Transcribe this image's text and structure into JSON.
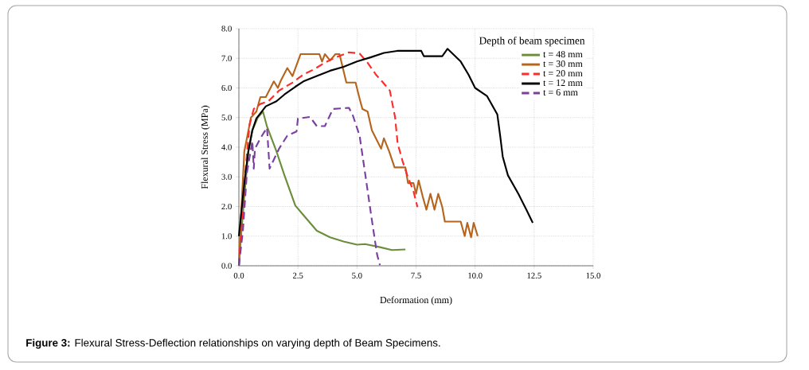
{
  "chart_data": {
    "type": "line",
    "xlabel": "Deformation (mm)",
    "ylabel": "Flexural Stress (MPa)",
    "legend_title": "Depth of beam specimen",
    "annotations": [
      "**Figure 3:** Flexural Stress-Deflection relationships on varying depth of Beam Specimens."
    ],
    "xlim": [
      0,
      15
    ],
    "ylim": [
      0,
      8
    ],
    "xticks": [
      {
        "value": 0,
        "label": "0.0"
      },
      {
        "value": 2.5,
        "label": "2.5"
      },
      {
        "value": 5,
        "label": "5.0"
      },
      {
        "value": 7.5,
        "label": "7.5"
      },
      {
        "value": 10,
        "label": "10.0"
      },
      {
        "value": 12.5,
        "label": "12.5"
      },
      {
        "value": 15,
        "label": "15.0"
      }
    ],
    "yticks": [
      {
        "value": 0,
        "label": "0.0"
      },
      {
        "value": 1,
        "label": "1.0"
      },
      {
        "value": 2,
        "label": "2.0"
      },
      {
        "value": 3,
        "label": "3.0"
      },
      {
        "value": 4,
        "label": "4.0"
      },
      {
        "value": 5,
        "label": "5.0"
      },
      {
        "value": 6,
        "label": "6.0"
      },
      {
        "value": 7,
        "label": "7.0"
      },
      {
        "value": 8,
        "label": "8.0"
      }
    ],
    "grid": true,
    "legend": "top right",
    "marker": "none",
    "series": [
      {
        "name": "t = 48 mm",
        "color": "#6b8e3a",
        "line_style": "solid",
        "x": [
          0,
          0.11,
          0.23,
          0.4,
          0.57,
          0.8,
          1.02,
          1.19,
          1.59,
          1.93,
          2.39,
          2.73,
          3.3,
          3.86,
          4.43,
          5.0,
          5.34,
          5.9,
          6.48,
          7.05
        ],
        "values": [
          0,
          1.18,
          2.34,
          3.86,
          4.57,
          5.0,
          5.2,
          4.7,
          3.86,
          3.05,
          2.03,
          1.71,
          1.18,
          0.96,
          0.82,
          0.71,
          0.73,
          0.64,
          0.53,
          0.55
        ]
      },
      {
        "name": "t = 30 mm",
        "color": "#b5651d",
        "line_style": "solid",
        "x": [
          0,
          0.06,
          0.23,
          0.34,
          0.51,
          0.74,
          0.91,
          1.14,
          1.48,
          1.65,
          1.76,
          2.05,
          2.27,
          2.61,
          3.41,
          3.52,
          3.64,
          3.86,
          4.09,
          4.26,
          4.55,
          4.94,
          5.11,
          5.23,
          5.45,
          5.63,
          5.8,
          6.02,
          6.14,
          6.36,
          6.59,
          7.05,
          7.16,
          7.39,
          7.5,
          7.61,
          7.78,
          7.94,
          8.11,
          8.28,
          8.44,
          8.61,
          8.72,
          9.39,
          9.56,
          9.67,
          9.83,
          9.94,
          10.11
        ],
        "values": [
          0,
          1.18,
          3.86,
          4.3,
          5.0,
          5.2,
          5.69,
          5.69,
          6.22,
          6.0,
          6.22,
          6.67,
          6.4,
          7.14,
          7.14,
          6.89,
          7.14,
          6.93,
          7.14,
          7.14,
          6.18,
          6.18,
          5.64,
          5.29,
          5.2,
          4.57,
          4.3,
          3.95,
          4.3,
          3.86,
          3.32,
          3.32,
          2.79,
          2.79,
          2.43,
          2.88,
          2.34,
          1.89,
          2.43,
          1.89,
          2.43,
          1.98,
          1.49,
          1.49,
          1.0,
          1.45,
          0.96,
          1.45,
          1.0
        ]
      },
      {
        "name": "t = 20 mm",
        "color": "#ff2a2a",
        "line_style": "dashed",
        "x": [
          0,
          0.11,
          0.28,
          0.45,
          0.63,
          0.91,
          1.25,
          1.7,
          2.27,
          2.73,
          3.18,
          3.64,
          4.09,
          4.66,
          5.11,
          5.45,
          5.8,
          6.06,
          6.39,
          6.61,
          6.72,
          6.94,
          7.17,
          7.39,
          7.56
        ],
        "values": [
          0,
          1.18,
          3.23,
          4.75,
          5.29,
          5.46,
          5.55,
          5.91,
          6.18,
          6.45,
          6.63,
          6.85,
          7.03,
          7.2,
          7.16,
          6.85,
          6.45,
          6.22,
          5.91,
          5.02,
          4.13,
          3.5,
          2.96,
          2.52,
          1.98
        ]
      },
      {
        "name": "t = 12 mm",
        "color": "#000000",
        "line_style": "solid",
        "x": [
          0,
          0.23,
          0.4,
          0.57,
          0.74,
          1.14,
          1.59,
          1.93,
          2.39,
          2.73,
          3.3,
          3.86,
          4.43,
          5.0,
          5.57,
          6.14,
          6.7,
          7.39,
          7.72,
          7.83,
          8.61,
          8.83,
          9.39,
          9.72,
          10.0,
          10.5,
          10.94,
          11.06,
          11.17,
          11.39,
          11.83,
          12.17,
          12.44
        ],
        "values": [
          1.0,
          2.79,
          3.86,
          4.57,
          4.97,
          5.38,
          5.55,
          5.78,
          6.04,
          6.22,
          6.4,
          6.58,
          6.71,
          6.89,
          7.03,
          7.18,
          7.25,
          7.25,
          7.25,
          7.07,
          7.07,
          7.32,
          6.89,
          6.45,
          6.0,
          5.73,
          5.11,
          4.39,
          3.68,
          3.05,
          2.43,
          1.89,
          1.45
        ]
      },
      {
        "name": "t = 6 mm",
        "color": "#7b3fa0",
        "line_style": "dashed",
        "x": [
          0,
          0.17,
          0.34,
          0.57,
          0.63,
          0.68,
          0.91,
          1.19,
          1.3,
          1.7,
          2.05,
          2.44,
          2.5,
          3.01,
          3.3,
          3.64,
          3.98,
          4.66,
          4.83,
          5.11,
          5.34,
          5.63,
          5.85,
          5.97
        ],
        "values": [
          0,
          1.18,
          3.14,
          4.21,
          3.28,
          3.95,
          4.3,
          4.66,
          3.28,
          3.95,
          4.39,
          4.53,
          4.97,
          5.02,
          4.71,
          4.71,
          5.29,
          5.33,
          5.06,
          4.39,
          3.14,
          1.54,
          0.38,
          0.02
        ]
      }
    ]
  }
}
